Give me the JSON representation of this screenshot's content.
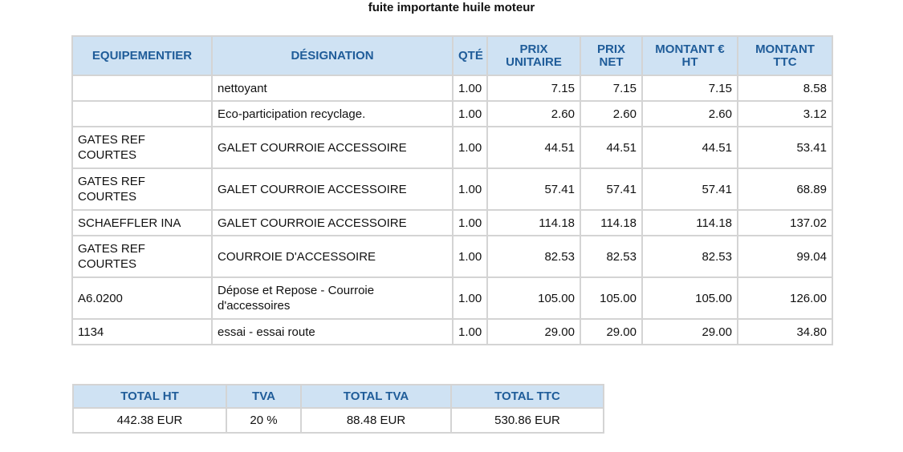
{
  "title": "fuite importante huile moteur",
  "items": {
    "headers": {
      "supplier": "EQUIPEMENTIER",
      "designation": "DÉSIGNATION",
      "qty": "QTÉ",
      "unit_price": "PRIX UNITAIRE",
      "net_price": "PRIX NET",
      "amount_ht": "MONTANT € HT",
      "amount_ttc": "MONTANT TTC"
    },
    "rows": [
      {
        "supplier": "",
        "designation": "nettoyant",
        "qty": "1.00",
        "unit_price": "7.15",
        "net_price": "7.15",
        "amount_ht": "7.15",
        "amount_ttc": "8.58"
      },
      {
        "supplier": "",
        "designation": "Eco-participation recyclage.",
        "qty": "1.00",
        "unit_price": "2.60",
        "net_price": "2.60",
        "amount_ht": "2.60",
        "amount_ttc": "3.12"
      },
      {
        "supplier": "GATES REF COURTES",
        "designation": "GALET COURROIE ACCESSOIRE",
        "qty": "1.00",
        "unit_price": "44.51",
        "net_price": "44.51",
        "amount_ht": "44.51",
        "amount_ttc": "53.41"
      },
      {
        "supplier": "GATES REF COURTES",
        "designation": "GALET COURROIE ACCESSOIRE",
        "qty": "1.00",
        "unit_price": "57.41",
        "net_price": "57.41",
        "amount_ht": "57.41",
        "amount_ttc": "68.89"
      },
      {
        "supplier": "SCHAEFFLER INA",
        "designation": "GALET COURROIE ACCESSOIRE",
        "qty": "1.00",
        "unit_price": "114.18",
        "net_price": "114.18",
        "amount_ht": "114.18",
        "amount_ttc": "137.02"
      },
      {
        "supplier": "GATES REF COURTES",
        "designation": "COURROIE D'ACCESSOIRE",
        "qty": "1.00",
        "unit_price": "82.53",
        "net_price": "82.53",
        "amount_ht": "82.53",
        "amount_ttc": "99.04"
      },
      {
        "supplier": "A6.0200",
        "designation": "Dépose et Repose - Courroie d'accessoires",
        "qty": "1.00",
        "unit_price": "105.00",
        "net_price": "105.00",
        "amount_ht": "105.00",
        "amount_ttc": "126.00"
      },
      {
        "supplier": "1134",
        "designation": "essai - essai route",
        "qty": "1.00",
        "unit_price": "29.00",
        "net_price": "29.00",
        "amount_ht": "29.00",
        "amount_ttc": "34.80"
      }
    ]
  },
  "totals": {
    "headers": {
      "total_ht": "TOTAL HT",
      "tva": "TVA",
      "total_tva": "TOTAL TVA",
      "total_ttc": "TOTAL TTC"
    },
    "values": {
      "total_ht": "442.38 EUR",
      "tva": "20 %",
      "total_tva": "88.48 EUR",
      "total_ttc": "530.86 EUR"
    }
  },
  "colors": {
    "header_background": "#cfe2f3",
    "header_text": "#1f5c99",
    "border": "#d4d4d4"
  }
}
